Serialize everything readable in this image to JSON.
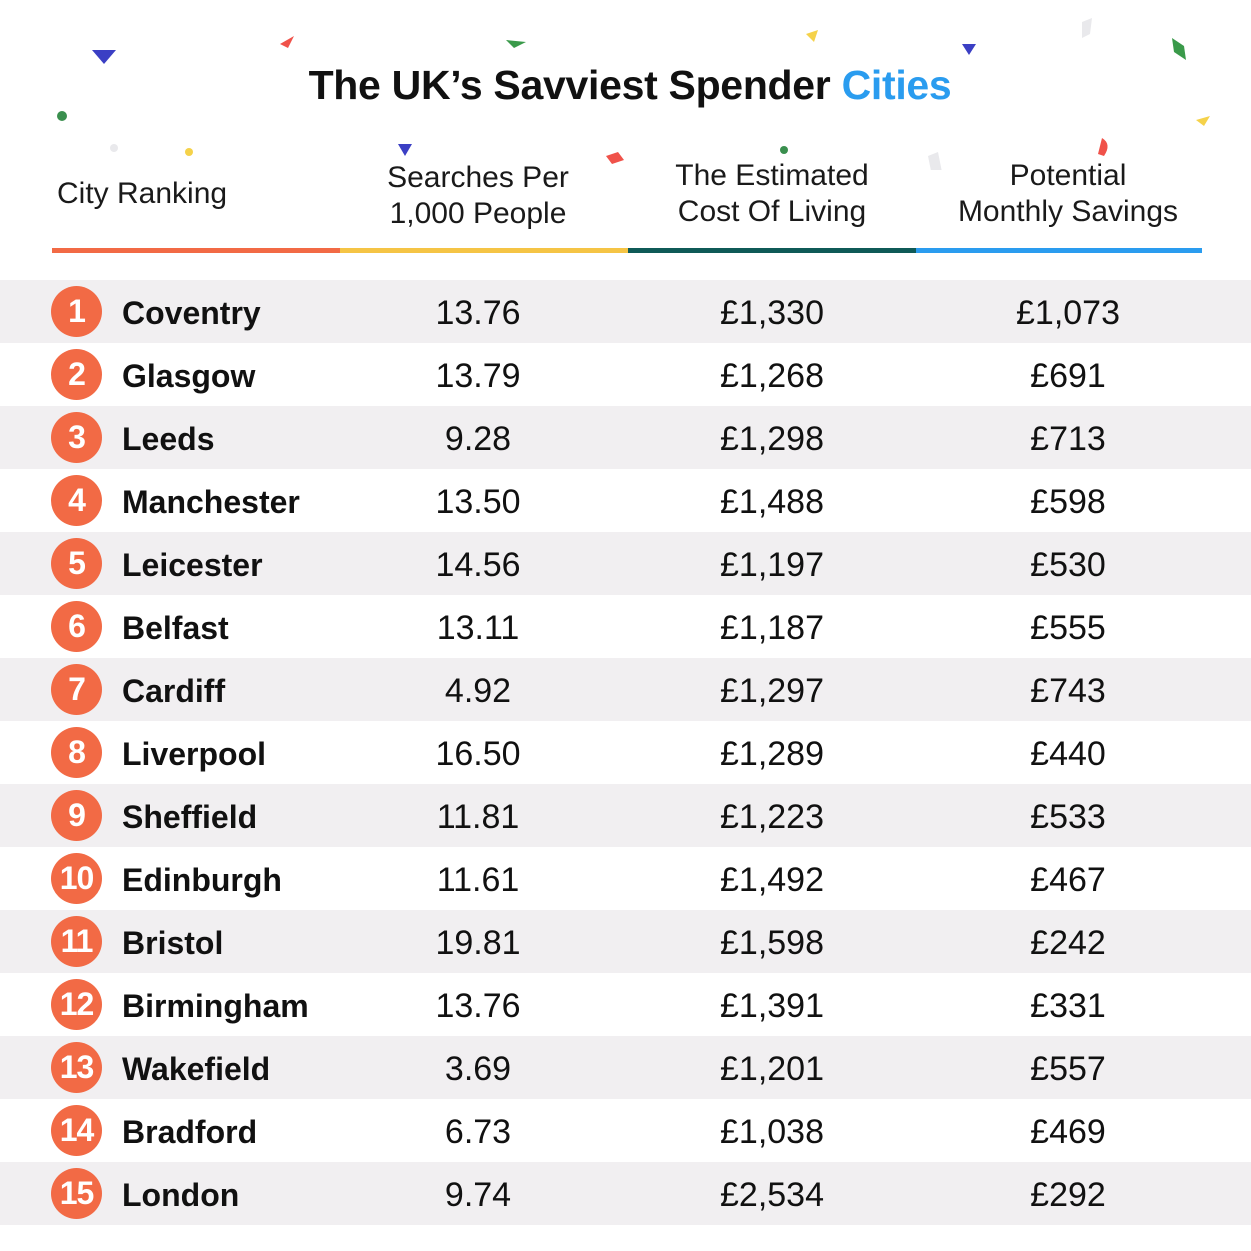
{
  "title": {
    "main": "The UK’s Savviest Spender ",
    "accent": "Cities"
  },
  "headers": {
    "city": "City Ranking",
    "searches_line1": "Searches Per",
    "searches_line2": "1,000 People",
    "cost_line1": "The Estimated",
    "cost_line2": "Cost Of Living",
    "savings_line1": "Potential",
    "savings_line2": "Monthly Savings"
  },
  "colors": {
    "accent_blue": "#2a9cef",
    "badge_orange": "#f26a45",
    "underline_orange": "#f26a45",
    "underline_yellow": "#f5c445",
    "underline_teal": "#0f5a57",
    "underline_blue": "#2a9cef",
    "row_shade": "#f1eff1"
  },
  "rows": [
    {
      "rank": "1",
      "city": "Coventry",
      "searches": "13.76",
      "cost": "£1,330",
      "savings": "£1,073"
    },
    {
      "rank": "2",
      "city": "Glasgow",
      "searches": "13.79",
      "cost": "£1,268",
      "savings": "£691"
    },
    {
      "rank": "3",
      "city": "Leeds",
      "searches": "9.28",
      "cost": "£1,298",
      "savings": "£713"
    },
    {
      "rank": "4",
      "city": "Manchester",
      "searches": "13.50",
      "cost": "£1,488",
      "savings": "£598"
    },
    {
      "rank": "5",
      "city": "Leicester",
      "searches": "14.56",
      "cost": "£1,197",
      "savings": "£530"
    },
    {
      "rank": "6",
      "city": "Belfast",
      "searches": "13.11",
      "cost": "£1,187",
      "savings": "£555"
    },
    {
      "rank": "7",
      "city": "Cardiff",
      "searches": "4.92",
      "cost": "£1,297",
      "savings": "£743"
    },
    {
      "rank": "8",
      "city": "Liverpool",
      "searches": "16.50",
      "cost": "£1,289",
      "savings": "£440"
    },
    {
      "rank": "9",
      "city": "Sheffield",
      "searches": "11.81",
      "cost": "£1,223",
      "savings": "£533"
    },
    {
      "rank": "10",
      "city": "Edinburgh",
      "searches": "11.61",
      "cost": "£1,492",
      "savings": "£467"
    },
    {
      "rank": "11",
      "city": "Bristol",
      "searches": "19.81",
      "cost": "£1,598",
      "savings": "£242"
    },
    {
      "rank": "12",
      "city": "Birmingham",
      "searches": "13.76",
      "cost": "£1,391",
      "savings": "£331"
    },
    {
      "rank": "13",
      "city": "Wakefield",
      "searches": "3.69",
      "cost": "£1,201",
      "savings": "£557"
    },
    {
      "rank": "14",
      "city": "Bradford",
      "searches": "6.73",
      "cost": "£1,038",
      "savings": "£469"
    },
    {
      "rank": "15",
      "city": "London",
      "searches": "9.74",
      "cost": "£2,534",
      "savings": "£292"
    }
  ]
}
